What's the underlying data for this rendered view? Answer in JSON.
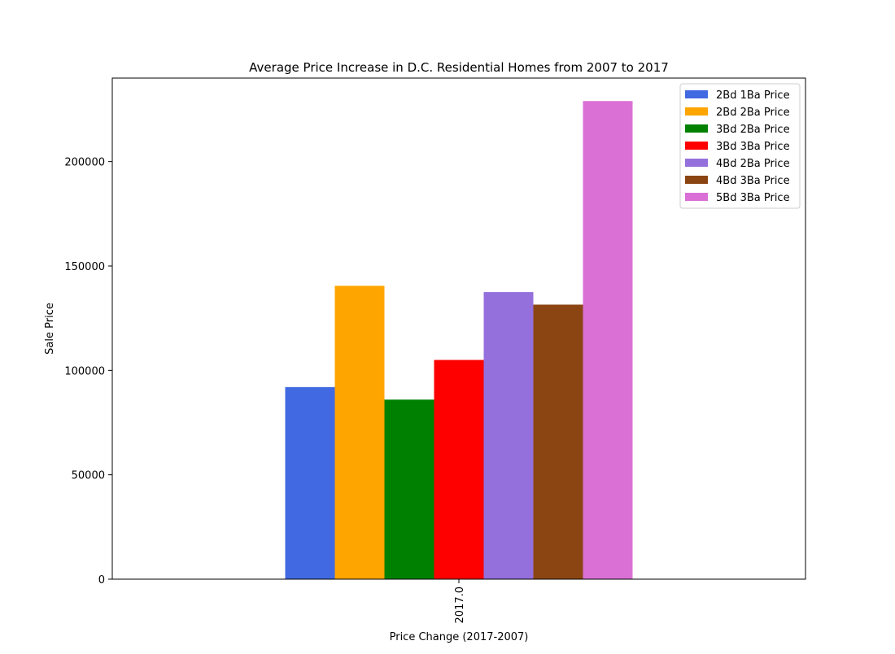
{
  "chart_data": {
    "type": "bar",
    "title": "Average Price Increase in D.C. Residential Homes from 2007 to 2017",
    "xlabel": "Price Change (2017-2007)",
    "ylabel": "Sale Price",
    "categories": [
      "2017.0"
    ],
    "ylim": [
      0,
      240000
    ],
    "yticks": [
      0,
      50000,
      100000,
      150000,
      200000
    ],
    "ytick_labels": [
      "0",
      "50000",
      "100000",
      "150000",
      "200000"
    ],
    "grid": false,
    "legend_position": "top-right",
    "series": [
      {
        "name": "2Bd 1Ba Price",
        "color": "#4169E1",
        "values": [
          92000
        ]
      },
      {
        "name": "2Bd 2Ba Price",
        "color": "#FFA500",
        "values": [
          140500
        ]
      },
      {
        "name": "3Bd 2Ba Price",
        "color": "#008000",
        "values": [
          86000
        ]
      },
      {
        "name": "3Bd 3Ba Price",
        "color": "#FF0000",
        "values": [
          105000
        ]
      },
      {
        "name": "4Bd 2Ba Price",
        "color": "#9370DB",
        "values": [
          137500
        ]
      },
      {
        "name": "4Bd 3Ba Price",
        "color": "#8B4513",
        "values": [
          131500
        ]
      },
      {
        "name": "5Bd 3Ba Price",
        "color": "#DA70D6",
        "values": [
          229000
        ]
      }
    ]
  }
}
